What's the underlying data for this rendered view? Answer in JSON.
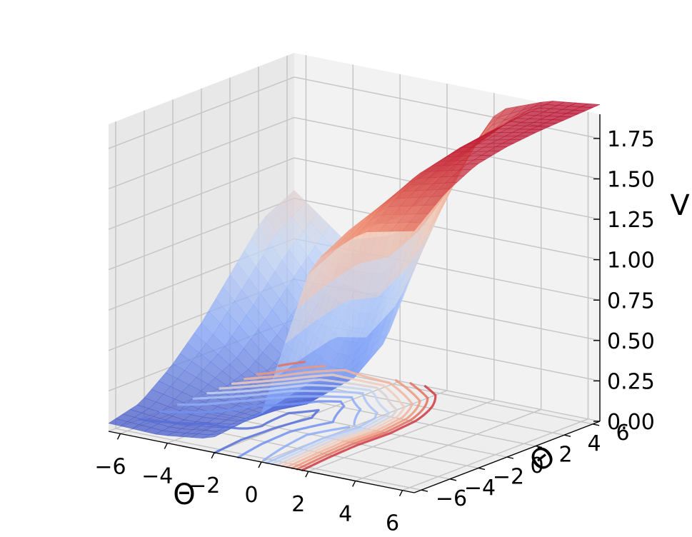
{
  "chart_data": {
    "type": "surface3d",
    "title": "",
    "xlabel": "Θ",
    "ylabel": "Θ̇",
    "zlabel": "V",
    "x_ticks": [
      "−6",
      "−4",
      "−2",
      "0",
      "2",
      "4",
      "6"
    ],
    "y_ticks": [
      "−6",
      "−4",
      "−2",
      "0",
      "2",
      "4",
      "6"
    ],
    "z_ticks": [
      "0.00",
      "0.25",
      "0.50",
      "0.75",
      "1.00",
      "1.25",
      "1.50",
      "1.75"
    ],
    "xlim": [
      -6.5,
      6.5
    ],
    "ylim": [
      -6.5,
      6.5
    ],
    "zlim": [
      0,
      1.9
    ],
    "colormap": "coolwarm",
    "grid": true,
    "surface_grid": {
      "x": [
        -6.5,
        -4.33,
        -2.17,
        0,
        2.17,
        4.33,
        6.5
      ],
      "y": [
        -6.5,
        -4.33,
        -2.17,
        0,
        2.17,
        4.33,
        6.5
      ],
      "z_rows_by_y": [
        [
          0.05,
          0.04,
          0.08,
          0.3,
          1.3,
          1.55,
          1.62
        ],
        [
          0.1,
          0.06,
          0.1,
          0.35,
          1.4,
          1.7,
          1.78
        ],
        [
          0.25,
          0.14,
          0.09,
          0.4,
          1.45,
          1.8,
          1.88
        ],
        [
          0.45,
          0.2,
          0.06,
          0.3,
          1.45,
          1.85,
          1.92
        ],
        [
          0.7,
          0.35,
          0.14,
          0.45,
          1.52,
          1.88,
          1.94
        ],
        [
          0.95,
          0.55,
          0.42,
          0.85,
          1.62,
          1.9,
          1.95
        ],
        [
          1.05,
          0.8,
          0.9,
          1.25,
          1.8,
          1.92,
          1.96
        ]
      ]
    },
    "contour_levels": [
      0.1,
      0.2,
      0.3,
      0.4,
      0.5,
      0.6,
      0.7,
      0.8,
      0.9,
      1.0,
      1.1
    ]
  }
}
